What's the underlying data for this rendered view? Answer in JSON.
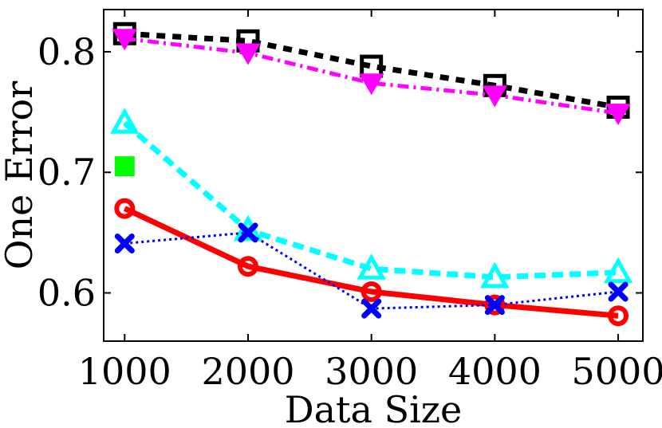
{
  "chart_data": {
    "type": "line",
    "xlabel": "Data Size",
    "ylabel": "One Error",
    "x": [
      1000,
      2000,
      3000,
      4000,
      5000
    ],
    "xlim": [
      830,
      5200
    ],
    "ylim": [
      0.56,
      0.835
    ],
    "xticks": [
      1000,
      2000,
      3000,
      4000,
      5000
    ],
    "yticks": [
      0.6,
      0.7,
      0.8
    ],
    "ytick_labels": [
      "0.6",
      "0.7",
      "0.8"
    ],
    "grid": false,
    "legend": "none",
    "series": [
      {
        "key": "black",
        "color": "#000000",
        "dash": "11,9",
        "width": 7,
        "marker": "square-open",
        "values": [
          0.815,
          0.809,
          0.788,
          0.772,
          0.754
        ]
      },
      {
        "key": "magenta",
        "color": "#ff00ff",
        "dash": "14,6,3,6",
        "width": 5,
        "marker": "triangle-down",
        "values": [
          0.811,
          0.799,
          0.774,
          0.764,
          0.749
        ]
      },
      {
        "key": "cyan",
        "color": "#00ffff",
        "dash": "14,8",
        "width": 7,
        "marker": "triangle-up",
        "values": [
          0.741,
          0.652,
          0.62,
          0.613,
          0.617
        ]
      },
      {
        "key": "green",
        "color": "#00ff00",
        "dash": "",
        "width": 0,
        "marker": "square-filled",
        "values": [
          0.705,
          null,
          null,
          null,
          null
        ]
      },
      {
        "key": "red",
        "color": "#ff0000",
        "dash": "",
        "width": 7,
        "marker": "circle-open",
        "values": [
          0.67,
          0.622,
          0.601,
          0.59,
          0.581
        ]
      },
      {
        "key": "blue",
        "color": "#0000ff",
        "dash": "3,4",
        "width": 3,
        "marker": "x",
        "values": [
          0.641,
          0.65,
          0.587,
          0.59,
          0.601
        ]
      }
    ]
  }
}
